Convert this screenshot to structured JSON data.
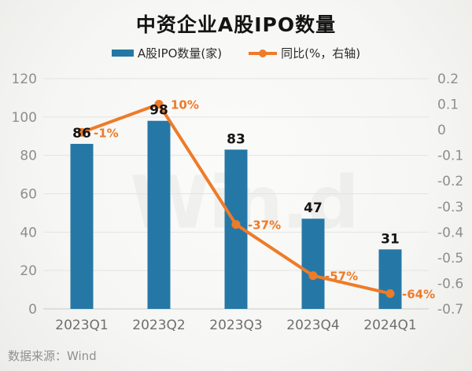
{
  "title": "中资企业A股IPO数量",
  "legend": [
    {
      "label": "A股IPO数量(家)",
      "swatch": "bar-swatch",
      "color": "#2578a5"
    },
    {
      "label": "同比(%，右轴)",
      "swatch": "line-dot-swatch",
      "color": "#ee7b28"
    }
  ],
  "watermark": "Win.d",
  "source": "数据来源：Wind",
  "colors": {
    "bar": "#2578a5",
    "line": "#ee7b28",
    "grid": "#e3e3e1",
    "axis_line": "#c9c9c7",
    "tick_text": "#8e8e8e",
    "category_text": "#6f6f6f",
    "value_label": "#141414"
  },
  "chart_data": {
    "type": "bar",
    "subtype": "bar+line dual axis",
    "title": "中资企业A股IPO数量",
    "categories": [
      "2023Q1",
      "2023Q2",
      "2023Q3",
      "2023Q4",
      "2024Q1"
    ],
    "series": [
      {
        "name": "A股IPO数量(家)",
        "type": "bar",
        "axis": "left",
        "values": [
          86,
          98,
          83,
          47,
          31
        ],
        "labels": [
          "86",
          "98",
          "83",
          "47",
          "31"
        ],
        "color": "#2578a5"
      },
      {
        "name": "同比(%，右轴)",
        "type": "line",
        "axis": "right",
        "values": [
          -0.01,
          0.1,
          -0.37,
          -0.57,
          -0.64
        ],
        "labels": [
          "-1%",
          "10%",
          "-37%",
          "-57%",
          "-64%"
        ],
        "color": "#ee7b28"
      }
    ],
    "left_axis": {
      "min": 0,
      "max": 120,
      "ticks": [
        "120",
        "100",
        "80",
        "60",
        "40",
        "20",
        "0"
      ]
    },
    "right_axis": {
      "min": -0.7,
      "max": 0.2,
      "ticks": [
        "0.2",
        "0.1",
        "0",
        "-0.1",
        "-0.2",
        "-0.3",
        "-0.4",
        "-0.5",
        "-0.6",
        "-0.7"
      ]
    },
    "grid": true,
    "legend_position": "top"
  }
}
